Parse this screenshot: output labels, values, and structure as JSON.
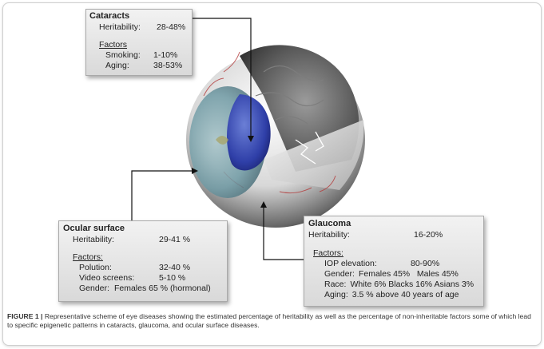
{
  "cataracts": {
    "title": "Cataracts",
    "heritability_label": "Heritability:",
    "heritability_value": "28-48%",
    "factors_label": "Factors",
    "factors": [
      {
        "label": "Smoking:",
        "value": "1-10%"
      },
      {
        "label": "Aging:",
        "value": "38-53%"
      }
    ]
  },
  "ocular_surface": {
    "title": "Ocular surface",
    "heritability_label": "Heritability:",
    "heritability_value": "29-41 %",
    "factors_label": "Factors:",
    "factors": [
      {
        "label": "Polution:",
        "value": "32-40 %"
      },
      {
        "label": "Video screens:",
        "value": "5-10 %"
      },
      {
        "label": "Gender:",
        "value": "Females 65 % (hormonal)"
      }
    ]
  },
  "glaucoma": {
    "title": "Glaucoma",
    "heritability_label": "Heritability:",
    "heritability_value": "16-20%",
    "factors_label": "Factors:",
    "factors": [
      {
        "label": "IOP elevation:",
        "value": "80-90%"
      },
      {
        "label": "Gender:",
        "value": "Females 45%   Males 45%"
      },
      {
        "label": "Race:",
        "value": "White 6% Blacks 16% Asians 3%"
      },
      {
        "label": "Aging:",
        "value": "3.5 % above 40 years of age"
      }
    ]
  },
  "caption": {
    "label": "FIGURE 1 |",
    "text": "Representative scheme of eye diseases showing the estimated percentage of heritability as well as the percentage of non-inheritable factors some of which lead to specific epigenetic patterns in cataracts, glaucoma, and ocular surface diseases."
  }
}
